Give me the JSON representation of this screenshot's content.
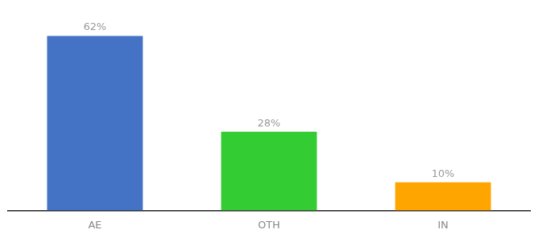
{
  "chart_data": {
    "type": "bar",
    "categories": [
      "AE",
      "OTH",
      "IN"
    ],
    "values": [
      62,
      28,
      10
    ],
    "value_labels": [
      "62%",
      "28%",
      "10%"
    ],
    "colors": [
      "#4472C4",
      "#33CC33",
      "#FFA500"
    ],
    "ylim": [
      0,
      72
    ],
    "data_labels": true,
    "tick_labels": "x",
    "grid": false
  }
}
